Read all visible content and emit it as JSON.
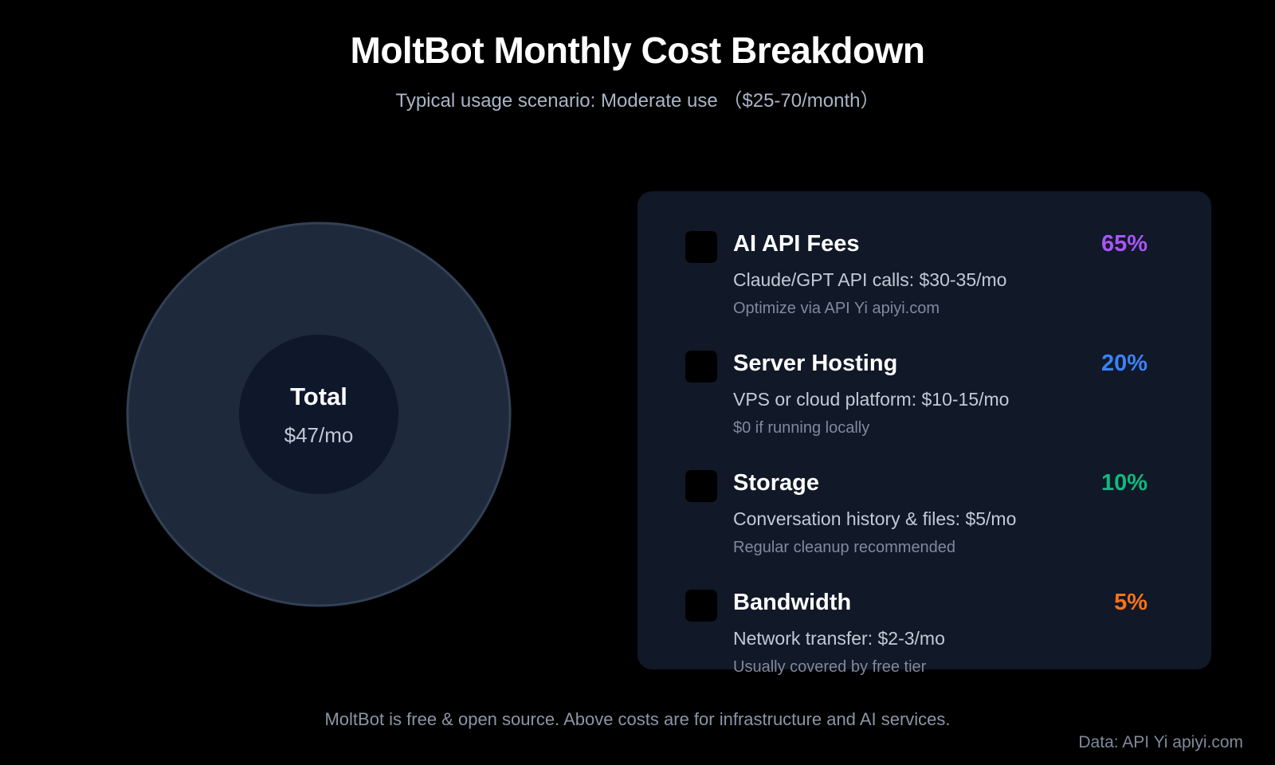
{
  "colors": {
    "background": "#000000",
    "panel": "#111827",
    "donut_ring": "#1e293b",
    "donut_ring_stroke": "#334155",
    "donut_center": "#0f172a",
    "ai_api": "#a855f7",
    "server": "#3b82f6",
    "storage": "#10b981",
    "bandwidth": "#f97316"
  },
  "chart_data": {
    "type": "pie",
    "title": "MoltBot Monthly Cost Breakdown",
    "subtitle": "Typical usage scenario: Moderate use （$25-70/month）",
    "center": {
      "label": "Total",
      "value": "$47/mo"
    },
    "categories": [
      "AI API Fees",
      "Server Hosting",
      "Storage",
      "Bandwidth"
    ],
    "values": [
      65,
      20,
      10,
      5
    ],
    "legend": [
      {
        "name": "AI API Fees",
        "percent_label": "65%",
        "value": 65,
        "description": "Claude/GPT API calls: $30-35/mo",
        "note": "Optimize via API Yi apiyi.com",
        "color": "#a855f7"
      },
      {
        "name": "Server Hosting",
        "percent_label": "20%",
        "value": 20,
        "description": "VPS or cloud platform: $10-15/mo",
        "note": "$0 if running locally",
        "color": "#3b82f6"
      },
      {
        "name": "Storage",
        "percent_label": "10%",
        "value": 10,
        "description": "Conversation history & files: $5/mo",
        "note": "Regular cleanup recommended",
        "color": "#10b981"
      },
      {
        "name": "Bandwidth",
        "percent_label": "5%",
        "value": 5,
        "description": "Network transfer: $2-3/mo",
        "note": "Usually covered by free tier",
        "color": "#f97316"
      }
    ],
    "legend_position": "right"
  },
  "footer": "MoltBot is free & open source. Above costs are for infrastructure and AI services.",
  "source": "Data: API Yi apiyi.com"
}
